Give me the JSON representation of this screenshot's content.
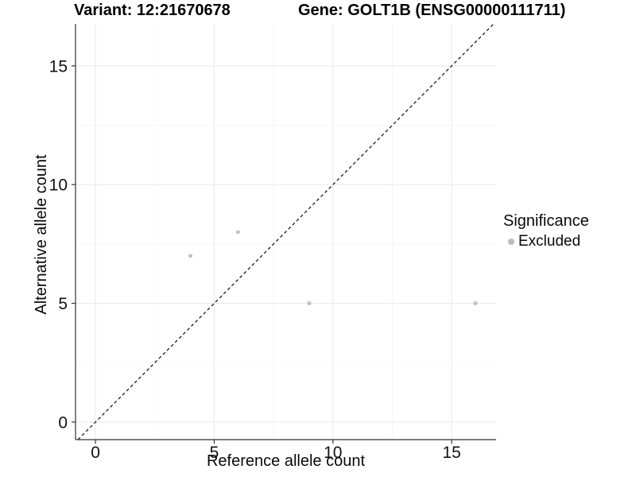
{
  "titles": {
    "variant": "Variant: 12:21670678",
    "gene": "Gene: GOLT1B (ENSG00000111711)"
  },
  "legend": {
    "title": "Significance",
    "items": [
      {
        "label": "Excluded",
        "color": "#bdbdbd"
      }
    ]
  },
  "chart_data": {
    "type": "scatter",
    "title": "Variant: 12:21670678  /  Gene: GOLT1B (ENSG00000111711)",
    "xlabel": "Reference allele count",
    "ylabel": "Alternative allele count",
    "xlim": [
      -0.84,
      16.87
    ],
    "ylim": [
      -0.74,
      16.77
    ],
    "x_ticks": [
      0,
      5,
      10,
      15
    ],
    "y_ticks": [
      0,
      5,
      10,
      15
    ],
    "x_minor_ticks": [
      2.5,
      7.5,
      12.5
    ],
    "y_minor_ticks": [
      2.5,
      7.5,
      12.5
    ],
    "grid": true,
    "legend_position": "right",
    "series": [
      {
        "name": "Excluded",
        "points": [
          {
            "x": 4,
            "y": 7
          },
          {
            "x": 6,
            "y": 8
          },
          {
            "x": 9,
            "y": 5
          },
          {
            "x": 16,
            "y": 5
          }
        ]
      }
    ],
    "reference_line": {
      "type": "identity",
      "slope": 1,
      "intercept": 0,
      "style": "dashed"
    },
    "colors": {
      "point": "#c2c2c2",
      "legend_key": "#bdbdbd",
      "major_grid": "#e9e9e9",
      "minor_grid": "#f3f3f3",
      "axis_line": "#333333",
      "tick_mark": "#333333",
      "tick_label": "#111111",
      "dashed_line": "#1a1a1a"
    }
  }
}
